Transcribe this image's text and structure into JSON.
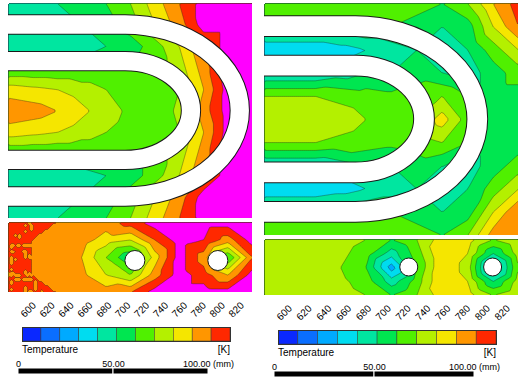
{
  "chart_data": [
    {
      "type": "contour",
      "top_cells": [
        [
          700,
          700,
          700,
          710,
          720,
          740,
          770,
          800,
          830,
          830,
          830
        ],
        [
          690,
          690,
          690,
          700,
          710,
          730,
          760,
          790,
          830,
          830,
          830
        ],
        [
          680,
          680,
          680,
          690,
          700,
          710,
          730,
          760,
          800,
          830,
          830
        ],
        [
          720,
          720,
          720,
          720,
          720,
          720,
          730,
          750,
          790,
          830,
          830
        ],
        [
          770,
          765,
          760,
          750,
          740,
          730,
          720,
          740,
          780,
          830,
          830
        ],
        [
          795,
          790,
          780,
          765,
          750,
          735,
          725,
          745,
          790,
          830,
          830
        ],
        [
          770,
          765,
          760,
          750,
          740,
          730,
          720,
          740,
          780,
          830,
          830
        ],
        [
          720,
          720,
          720,
          720,
          720,
          720,
          730,
          750,
          790,
          830,
          830
        ],
        [
          680,
          680,
          680,
          690,
          700,
          710,
          730,
          760,
          800,
          830,
          830
        ],
        [
          690,
          690,
          690,
          700,
          710,
          730,
          760,
          790,
          830,
          830,
          830
        ],
        [
          700,
          700,
          700,
          710,
          720,
          740,
          770,
          800,
          830,
          830,
          830
        ]
      ],
      "section_cells": [
        [
          800,
          800,
          800,
          795,
          790,
          810,
          830,
          830,
          830,
          830,
          830
        ],
        [
          800,
          800,
          795,
          790,
          770,
          760,
          800,
          830,
          820,
          790,
          830
        ],
        [
          800,
          800,
          795,
          780,
          740,
          700,
          770,
          830,
          790,
          720,
          800
        ],
        [
          800,
          800,
          795,
          785,
          760,
          740,
          790,
          830,
          810,
          780,
          830
        ],
        [
          800,
          800,
          800,
          795,
          790,
          800,
          830,
          830,
          830,
          830,
          830
        ]
      ],
      "colors": [
        "#0000d0",
        "#0a28ff",
        "#0a6eff",
        "#00aaff",
        "#00dcf0",
        "#00e6a0",
        "#00e650",
        "#50f000",
        "#b4f000",
        "#f5e600",
        "#ff9600",
        "#ff2800",
        "#ff00ff"
      ],
      "colorbar": {
        "label": "Temperature",
        "unit": "[K]",
        "range": [
          600,
          820
        ],
        "ticks": [
          600,
          620,
          640,
          660,
          680,
          700,
          720,
          740,
          760,
          780,
          800,
          820
        ]
      },
      "scale_bar": {
        "range": [
          0,
          100
        ],
        "ticks": [
          0,
          {
            "value": 50,
            "label": "50.00"
          },
          {
            "value": 100,
            "label": "100.00"
          }
        ],
        "unit": "(mm)"
      }
    },
    {
      "type": "contour",
      "top_cells": [
        [
          740,
          740,
          740,
          740,
          740,
          740,
          730,
          720,
          740,
          780,
          810
        ],
        [
          720,
          720,
          720,
          720,
          720,
          720,
          710,
          700,
          710,
          760,
          800
        ],
        [
          660,
          660,
          660,
          670,
          680,
          690,
          700,
          690,
          700,
          730,
          760
        ],
        [
          680,
          680,
          680,
          690,
          700,
          700,
          710,
          700,
          690,
          710,
          730
        ],
        [
          740,
          740,
          740,
          735,
          730,
          725,
          730,
          740,
          720,
          710,
          710
        ],
        [
          760,
          758,
          755,
          750,
          740,
          730,
          740,
          770,
          730,
          710,
          700
        ],
        [
          740,
          740,
          740,
          735,
          730,
          725,
          730,
          740,
          720,
          710,
          710
        ],
        [
          680,
          680,
          680,
          690,
          700,
          700,
          710,
          700,
          690,
          710,
          730
        ],
        [
          660,
          660,
          660,
          670,
          680,
          690,
          700,
          690,
          700,
          730,
          760
        ],
        [
          720,
          720,
          720,
          720,
          720,
          720,
          710,
          700,
          710,
          760,
          800
        ],
        [
          740,
          740,
          740,
          740,
          740,
          740,
          730,
          720,
          740,
          790,
          800
        ]
      ],
      "section_cells": [
        [
          750,
          750,
          750,
          750,
          740,
          720,
          740,
          770,
          770,
          740,
          760
        ],
        [
          750,
          750,
          750,
          745,
          730,
          690,
          730,
          780,
          760,
          700,
          750
        ],
        [
          750,
          750,
          750,
          740,
          720,
          650,
          720,
          780,
          750,
          650,
          740
        ],
        [
          750,
          750,
          750,
          745,
          730,
          690,
          730,
          780,
          760,
          700,
          750
        ],
        [
          750,
          750,
          750,
          750,
          740,
          720,
          740,
          770,
          770,
          740,
          760
        ]
      ],
      "colors": [
        "#0000d0",
        "#0a28ff",
        "#0a6eff",
        "#00aaff",
        "#00dcf0",
        "#00e6a0",
        "#00e650",
        "#50f000",
        "#b4f000",
        "#f5e600",
        "#ff9600",
        "#ff2800",
        "#ff00ff"
      ],
      "colorbar": {
        "label": "Temperature",
        "unit": "[K]",
        "range": [
          600,
          820
        ],
        "ticks": [
          600,
          620,
          640,
          660,
          680,
          700,
          720,
          740,
          760,
          780,
          800,
          820
        ]
      },
      "scale_bar": {
        "range": [
          0,
          100
        ],
        "ticks": [
          0,
          {
            "value": 50,
            "label": "50.00"
          },
          {
            "value": 100,
            "label": "100.00"
          }
        ],
        "unit": "(mm)"
      }
    }
  ]
}
